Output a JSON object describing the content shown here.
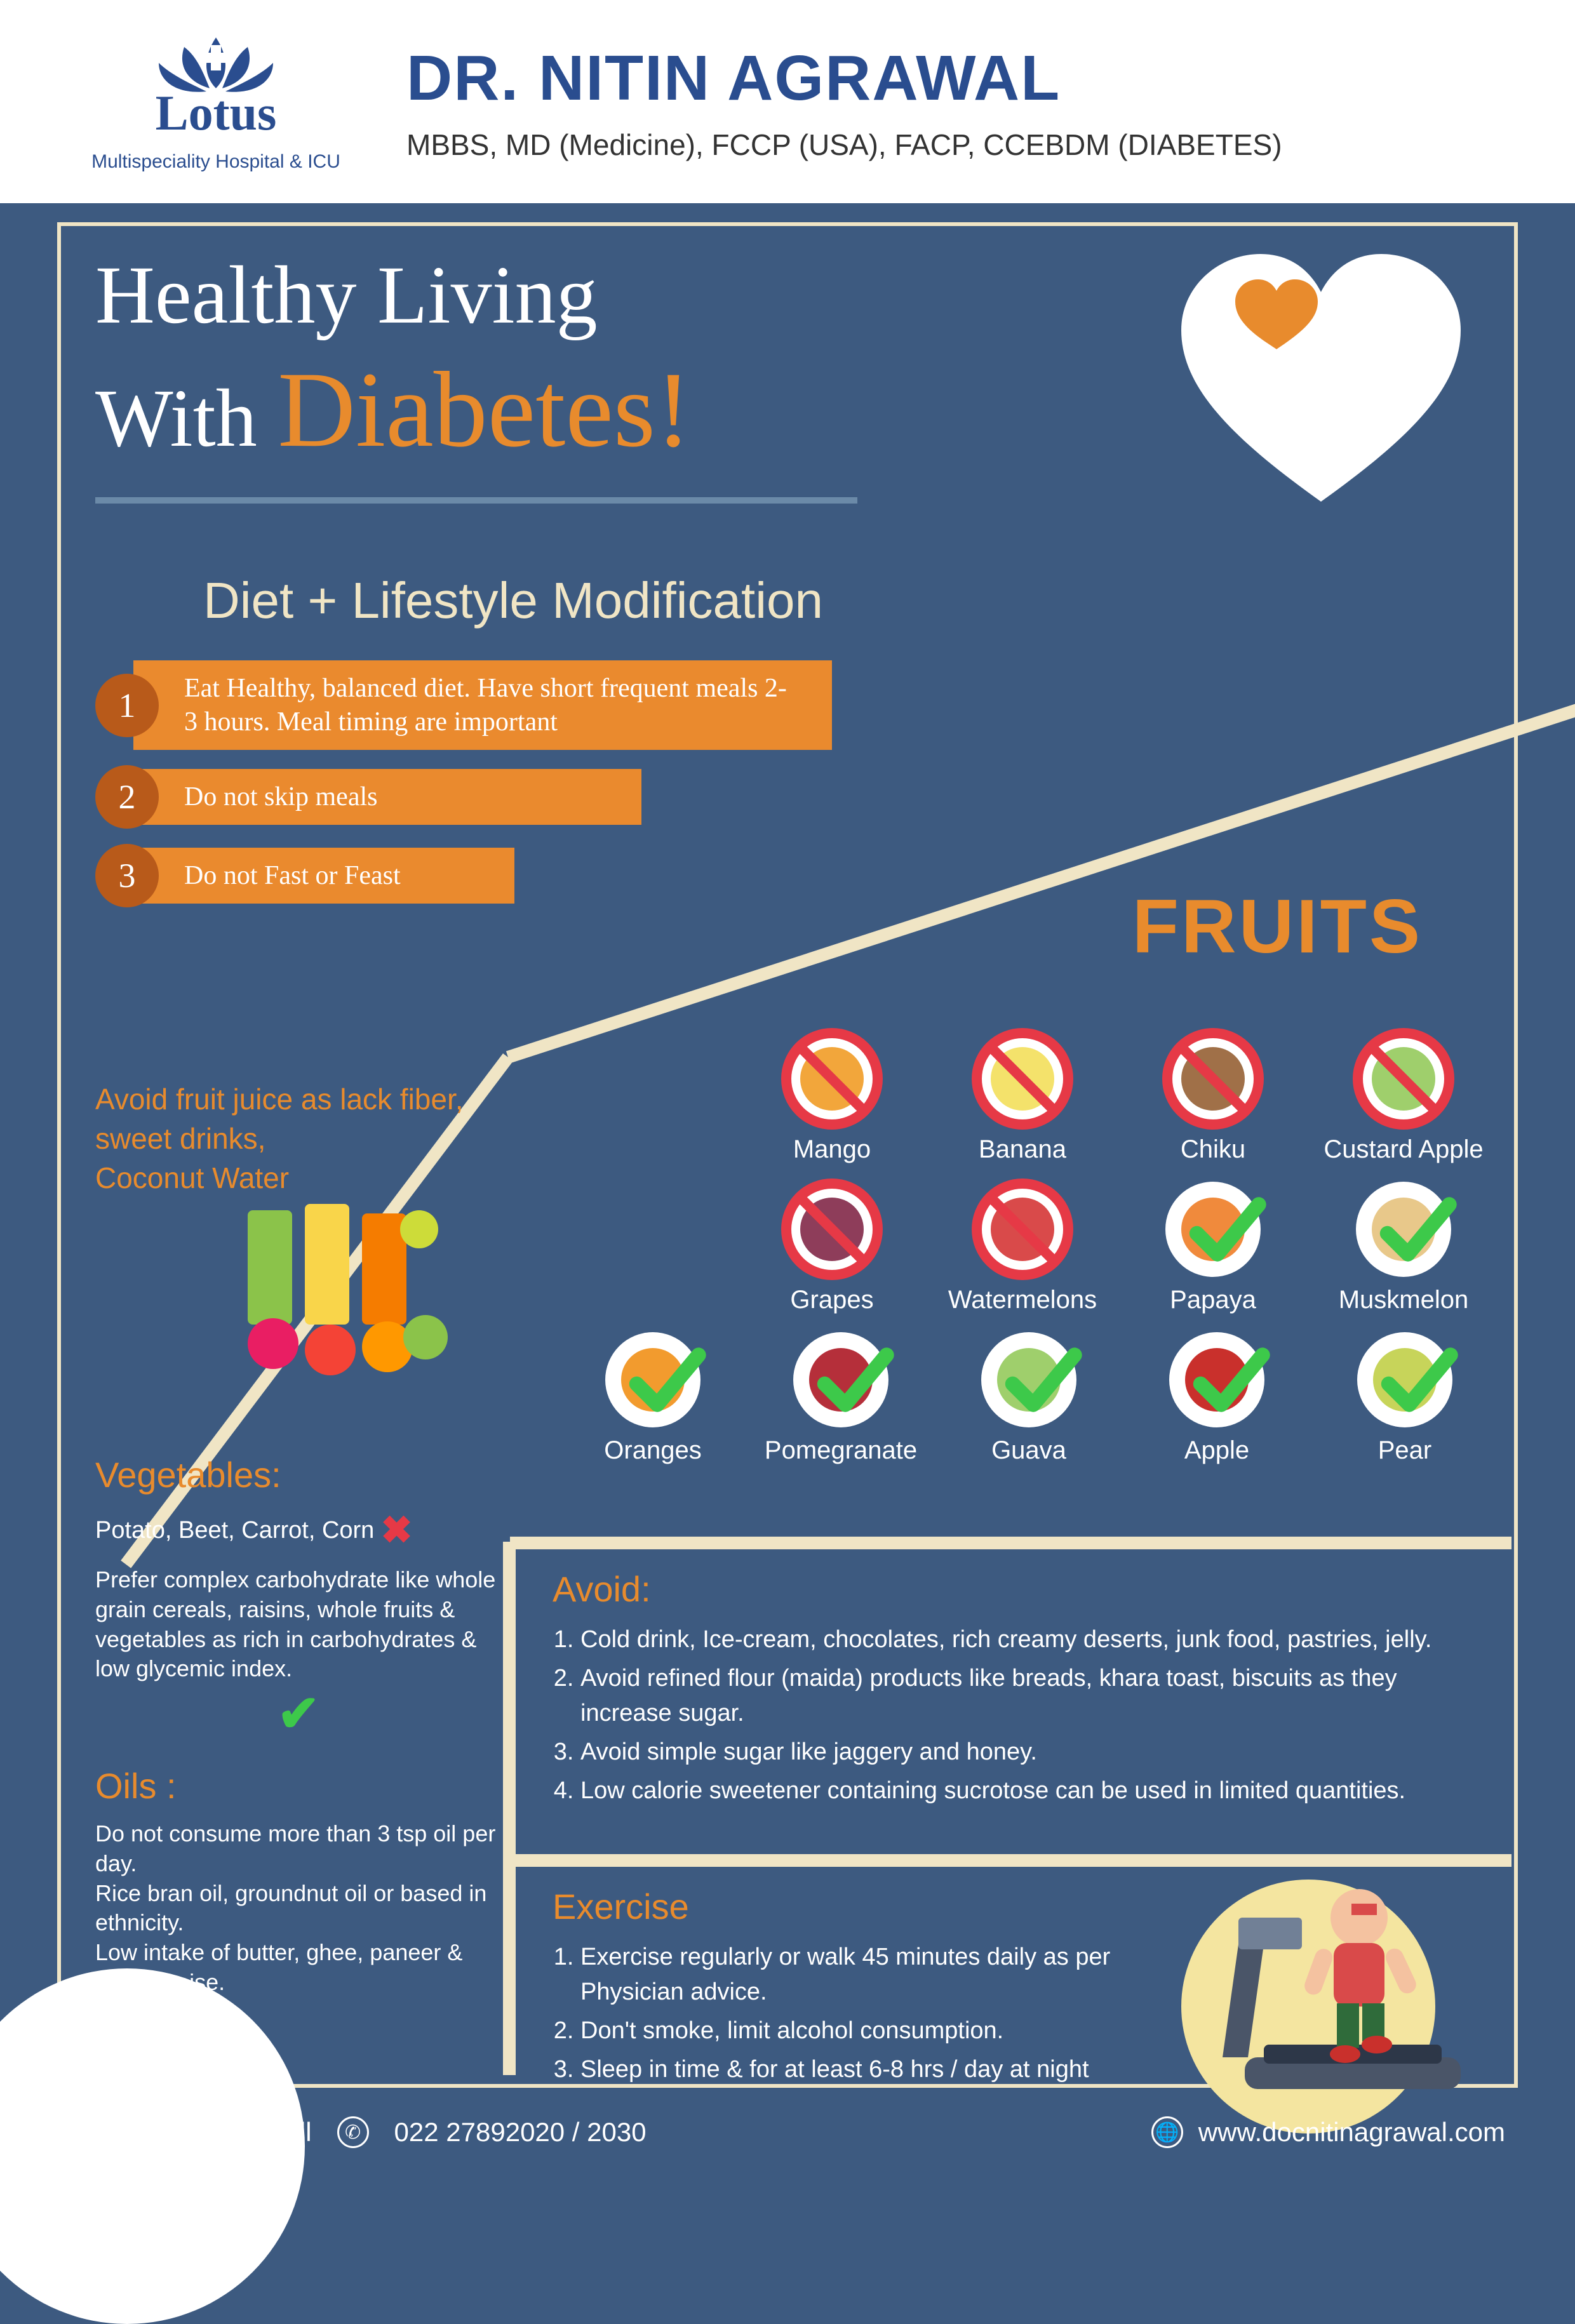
{
  "colors": {
    "bg": "#3d5a80",
    "frame": "#f0e5c5",
    "accent": "#e88b2d",
    "accent_dark": "#b85a1a",
    "brand": "#2a4d8f",
    "ok": "#3dc94a",
    "no": "#e63946",
    "white": "#ffffff"
  },
  "header": {
    "logo_name": "Lotus",
    "logo_sub": "Multispeciality  Hospital & ICU",
    "doctor": "DR. NITIN AGRAWAL",
    "credentials": "MBBS, MD (Medicine), FCCP (USA), FACP, CCEBDM (DIABETES)"
  },
  "title": {
    "line1": "Healthy Living",
    "with": "With",
    "accent": "Diabetes!"
  },
  "subtitle": "Diet + Lifestyle Modification",
  "tips": [
    {
      "num": "1",
      "text": "Eat Healthy, balanced diet. Have short frequent meals 2-3 hours. Meal timing are important",
      "w": "w1"
    },
    {
      "num": "2",
      "text": "Do not skip meals",
      "w": "w2"
    },
    {
      "num": "3",
      "text": "Do not Fast or Feast",
      "w": "w3"
    }
  ],
  "fruits_heading": "FRUITS",
  "fruits": [
    {
      "label": "Mango",
      "ok": false,
      "color": "#f2a63b"
    },
    {
      "label": "Banana",
      "ok": false,
      "color": "#f4e26b"
    },
    {
      "label": "Chiku",
      "ok": false,
      "color": "#a07048"
    },
    {
      "label": "Custard Apple",
      "ok": false,
      "color": "#9fcf6c"
    },
    {
      "label": "Grapes",
      "ok": false,
      "color": "#8e3d5a"
    },
    {
      "label": "Watermelons",
      "ok": false,
      "color": "#d94a4a"
    },
    {
      "label": "Papaya",
      "ok": true,
      "color": "#f08a3c"
    },
    {
      "label": "Muskmelon",
      "ok": true,
      "color": "#e8c88a"
    },
    {
      "label": "Oranges",
      "ok": true,
      "color": "#f29b2e"
    },
    {
      "label": "Pomegranate",
      "ok": true,
      "color": "#b52f3a"
    },
    {
      "label": "Guava",
      "ok": true,
      "color": "#9fcf6c"
    },
    {
      "label": "Apple",
      "ok": true,
      "color": "#c9302c"
    },
    {
      "label": "Pear",
      "ok": true,
      "color": "#c7d45a"
    }
  ],
  "juice_text": "Avoid fruit juice as lack fiber, sweet drinks,\nCoconut Water",
  "vegetables": {
    "heading": "Vegetables:",
    "avoid": "Potato, Beet, Carrot, Corn",
    "prefer": "Prefer complex carbohydrate like whole grain cereals, raisins, whole fruits & vegetables as rich in carbohydrates & low glycemic index."
  },
  "oils": {
    "heading": "Oils :",
    "text": "Do not consume more than 3 tsp oil per day.\nRice bran oil, groundnut oil or based in ethnicity.\nLow intake of butter, ghee, paneer & mayonnaise."
  },
  "avoid": {
    "heading": "Avoid:",
    "items": [
      "Cold drink, Ice-cream, chocolates, rich creamy deserts, junk food, pastries, jelly.",
      "Avoid refined flour (maida) products like breads, khara toast, biscuits as they increase sugar.",
      "Avoid simple sugar like jaggery and honey.",
      "Low calorie sweetener containing sucrotose can be used in limited quantities."
    ]
  },
  "exercise": {
    "heading": "Exercise",
    "items": [
      "Exercise regularly or walk 45 minutes daily as per Physician advice.",
      "Don't smoke, limit alcohol consumption.",
      "Sleep in time & for at least 6-8 hrs / day at night"
    ]
  },
  "footer": {
    "appointment": "For appointment call",
    "phone": "022 27892020 / 2030",
    "website": "www.docnitinagrawal.com"
  }
}
